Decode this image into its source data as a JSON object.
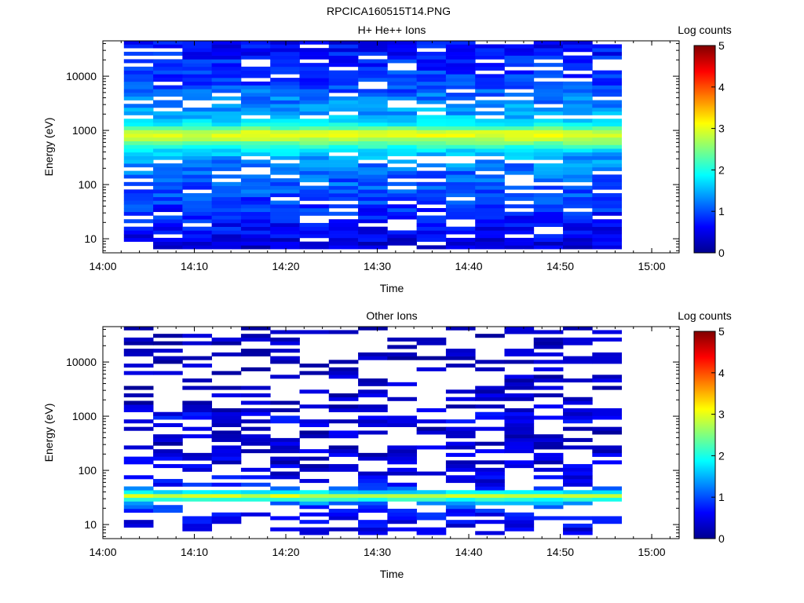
{
  "figure": {
    "title": "RPCICA160515T14.PNG"
  },
  "colors": {
    "colormap": [
      "#00008f",
      "#0000ff",
      "#00ffff",
      "#ffff00",
      "#ff0000",
      "#800000"
    ],
    "frame": "#000000",
    "background": "#ffffff"
  },
  "chart_data": [
    {
      "type": "heatmap",
      "title": "H+ He++ Ions",
      "xlabel": "Time",
      "ylabel": "Energy (eV)",
      "x_tick_labels": [
        "14:00",
        "14:10",
        "14:20",
        "14:30",
        "14:40",
        "14:50",
        "15:00"
      ],
      "x_tick_minutes": [
        0,
        10,
        20,
        30,
        40,
        50,
        60
      ],
      "xlim_minutes": [
        0,
        63
      ],
      "data_start_minute": 2.3,
      "bin_minutes": 3.2,
      "n_time_bins": 17,
      "y_scale": "log",
      "ylim": [
        5.5,
        45000
      ],
      "y_tick_labels": [
        "10",
        "100",
        "1000",
        "10000"
      ],
      "y_tick_values": [
        10,
        100,
        1000,
        10000
      ],
      "energy_profile_log_counts": [
        [
          7,
          0.4
        ],
        [
          9,
          0.5
        ],
        [
          11,
          0.55
        ],
        [
          13,
          0.6
        ],
        [
          16,
          0.65
        ],
        [
          20,
          0.7
        ],
        [
          25,
          0.75
        ],
        [
          32,
          0.8
        ],
        [
          40,
          0.85
        ],
        [
          50,
          0.9
        ],
        [
          63,
          0.95
        ],
        [
          80,
          1.0
        ],
        [
          100,
          1.05
        ],
        [
          130,
          1.1
        ],
        [
          160,
          1.15
        ],
        [
          200,
          1.2
        ],
        [
          260,
          1.3
        ],
        [
          330,
          1.45
        ],
        [
          420,
          1.7
        ],
        [
          520,
          2.1
        ],
        [
          620,
          2.55
        ],
        [
          720,
          2.85
        ],
        [
          820,
          3.0
        ],
        [
          920,
          2.9
        ],
        [
          1050,
          2.5
        ],
        [
          1200,
          2.0
        ],
        [
          1400,
          1.75
        ],
        [
          1700,
          1.6
        ],
        [
          2000,
          1.5
        ],
        [
          2500,
          1.4
        ],
        [
          3200,
          1.3
        ],
        [
          4000,
          1.2
        ],
        [
          5000,
          1.1
        ],
        [
          6500,
          1.0
        ],
        [
          8000,
          0.95
        ],
        [
          10000,
          0.9
        ],
        [
          13000,
          0.85
        ],
        [
          17000,
          0.8
        ],
        [
          22000,
          0.75
        ],
        [
          28000,
          0.7
        ],
        [
          35000,
          0.65
        ],
        [
          42000,
          0.6
        ]
      ],
      "empty_fraction": 0.17,
      "colorbar": {
        "label": "Log counts",
        "range": [
          0,
          5
        ],
        "tick_labels": [
          "0",
          "1",
          "2",
          "3",
          "4",
          "5"
        ],
        "ticks": [
          0,
          1,
          2,
          3,
          4,
          5
        ]
      },
      "grid": false
    },
    {
      "type": "heatmap",
      "title": "Other Ions",
      "xlabel": "Time",
      "ylabel": "Energy (eV)",
      "x_tick_labels": [
        "14:00",
        "14:10",
        "14:20",
        "14:30",
        "14:40",
        "14:50",
        "15:00"
      ],
      "x_tick_minutes": [
        0,
        10,
        20,
        30,
        40,
        50,
        60
      ],
      "xlim_minutes": [
        0,
        63
      ],
      "data_start_minute": 2.3,
      "bin_minutes": 3.2,
      "n_time_bins": 17,
      "y_scale": "log",
      "ylim": [
        5.5,
        45000
      ],
      "y_tick_labels": [
        "10",
        "100",
        "1000",
        "10000"
      ],
      "y_tick_values": [
        10,
        100,
        1000,
        10000
      ],
      "energy_profile_log_counts": [
        [
          7,
          0.45
        ],
        [
          9,
          0.5
        ],
        [
          11,
          0.55
        ],
        [
          14,
          0.6
        ],
        [
          18,
          0.75
        ],
        [
          22,
          1.0
        ],
        [
          26,
          1.4
        ],
        [
          29,
          2.0
        ],
        [
          31,
          2.6
        ],
        [
          33,
          3.0
        ],
        [
          35,
          2.8
        ],
        [
          38,
          2.1
        ],
        [
          42,
          1.4
        ],
        [
          48,
          0.9
        ],
        [
          55,
          0.65
        ],
        [
          65,
          0.55
        ],
        [
          80,
          0.5
        ],
        [
          100,
          0.45
        ],
        [
          150,
          0.4
        ],
        [
          250,
          0.35
        ],
        [
          400,
          0.32
        ],
        [
          700,
          0.3
        ],
        [
          900,
          0.6
        ],
        [
          1000,
          0.75
        ],
        [
          1200,
          0.35
        ],
        [
          2000,
          0.28
        ],
        [
          4000,
          0.25
        ],
        [
          8000,
          0.22
        ],
        [
          16000,
          0.2
        ],
        [
          32000,
          0.18
        ],
        [
          42000,
          0.15
        ]
      ],
      "empty_fraction": 0.5,
      "colorbar": {
        "label": "Log counts",
        "range": [
          0,
          5
        ],
        "tick_labels": [
          "0",
          "1",
          "2",
          "3",
          "4",
          "5"
        ],
        "ticks": [
          0,
          1,
          2,
          3,
          4,
          5
        ]
      },
      "grid": false
    }
  ]
}
